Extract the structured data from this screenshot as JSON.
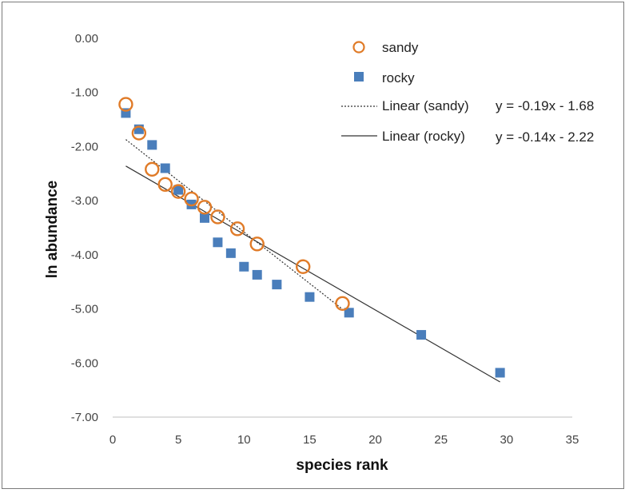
{
  "chart_data": {
    "type": "scatter",
    "title": "",
    "xlabel": "species rank",
    "ylabel": "ln abundance",
    "xlim": [
      0,
      35
    ],
    "ylim": [
      -7,
      0
    ],
    "x_ticks": [
      "0",
      "5",
      "10",
      "15",
      "20",
      "25",
      "30",
      "35"
    ],
    "y_ticks": [
      "0.00",
      "-1.00",
      "-2.00",
      "-3.00",
      "-4.00",
      "-5.00",
      "-6.00",
      "-7.00"
    ],
    "grid": false,
    "legend_position": "top-right",
    "series": [
      {
        "name": "sandy",
        "marker": "open-circle",
        "color": "#E07B28",
        "points": [
          {
            "x": 1,
            "y": -1.22
          },
          {
            "x": 2,
            "y": -1.75
          },
          {
            "x": 3,
            "y": -2.42
          },
          {
            "x": 4,
            "y": -2.7
          },
          {
            "x": 5,
            "y": -2.83
          },
          {
            "x": 6,
            "y": -2.97
          },
          {
            "x": 7,
            "y": -3.12
          },
          {
            "x": 8,
            "y": -3.3
          },
          {
            "x": 9.5,
            "y": -3.52
          },
          {
            "x": 11,
            "y": -3.8
          },
          {
            "x": 14.5,
            "y": -4.22
          },
          {
            "x": 17.5,
            "y": -4.9
          }
        ]
      },
      {
        "name": "rocky",
        "marker": "filled-square",
        "color": "#4A7EBB",
        "points": [
          {
            "x": 1,
            "y": -1.38
          },
          {
            "x": 2,
            "y": -1.68
          },
          {
            "x": 3,
            "y": -1.97
          },
          {
            "x": 4,
            "y": -2.4
          },
          {
            "x": 5,
            "y": -2.8
          },
          {
            "x": 6,
            "y": -3.07
          },
          {
            "x": 7,
            "y": -3.32
          },
          {
            "x": 8,
            "y": -3.77
          },
          {
            "x": 9,
            "y": -3.97
          },
          {
            "x": 10,
            "y": -4.22
          },
          {
            "x": 11,
            "y": -4.37
          },
          {
            "x": 12.5,
            "y": -4.55
          },
          {
            "x": 15,
            "y": -4.78
          },
          {
            "x": 18,
            "y": -5.07
          },
          {
            "x": 23.5,
            "y": -5.48
          },
          {
            "x": 29.5,
            "y": -6.18
          }
        ]
      }
    ],
    "trendlines": [
      {
        "name": "Linear (sandy)",
        "style": "dotted",
        "color": "#333333",
        "x_range": [
          1,
          17.5
        ],
        "slope": -0.19,
        "intercept": -1.68,
        "equation": "y = -0.19x - 1.68"
      },
      {
        "name": "Linear (rocky)",
        "style": "solid",
        "color": "#333333",
        "x_range": [
          1,
          29.5
        ],
        "slope": -0.14,
        "intercept": -2.22,
        "equation": "y = -0.14x - 2.22"
      }
    ]
  }
}
